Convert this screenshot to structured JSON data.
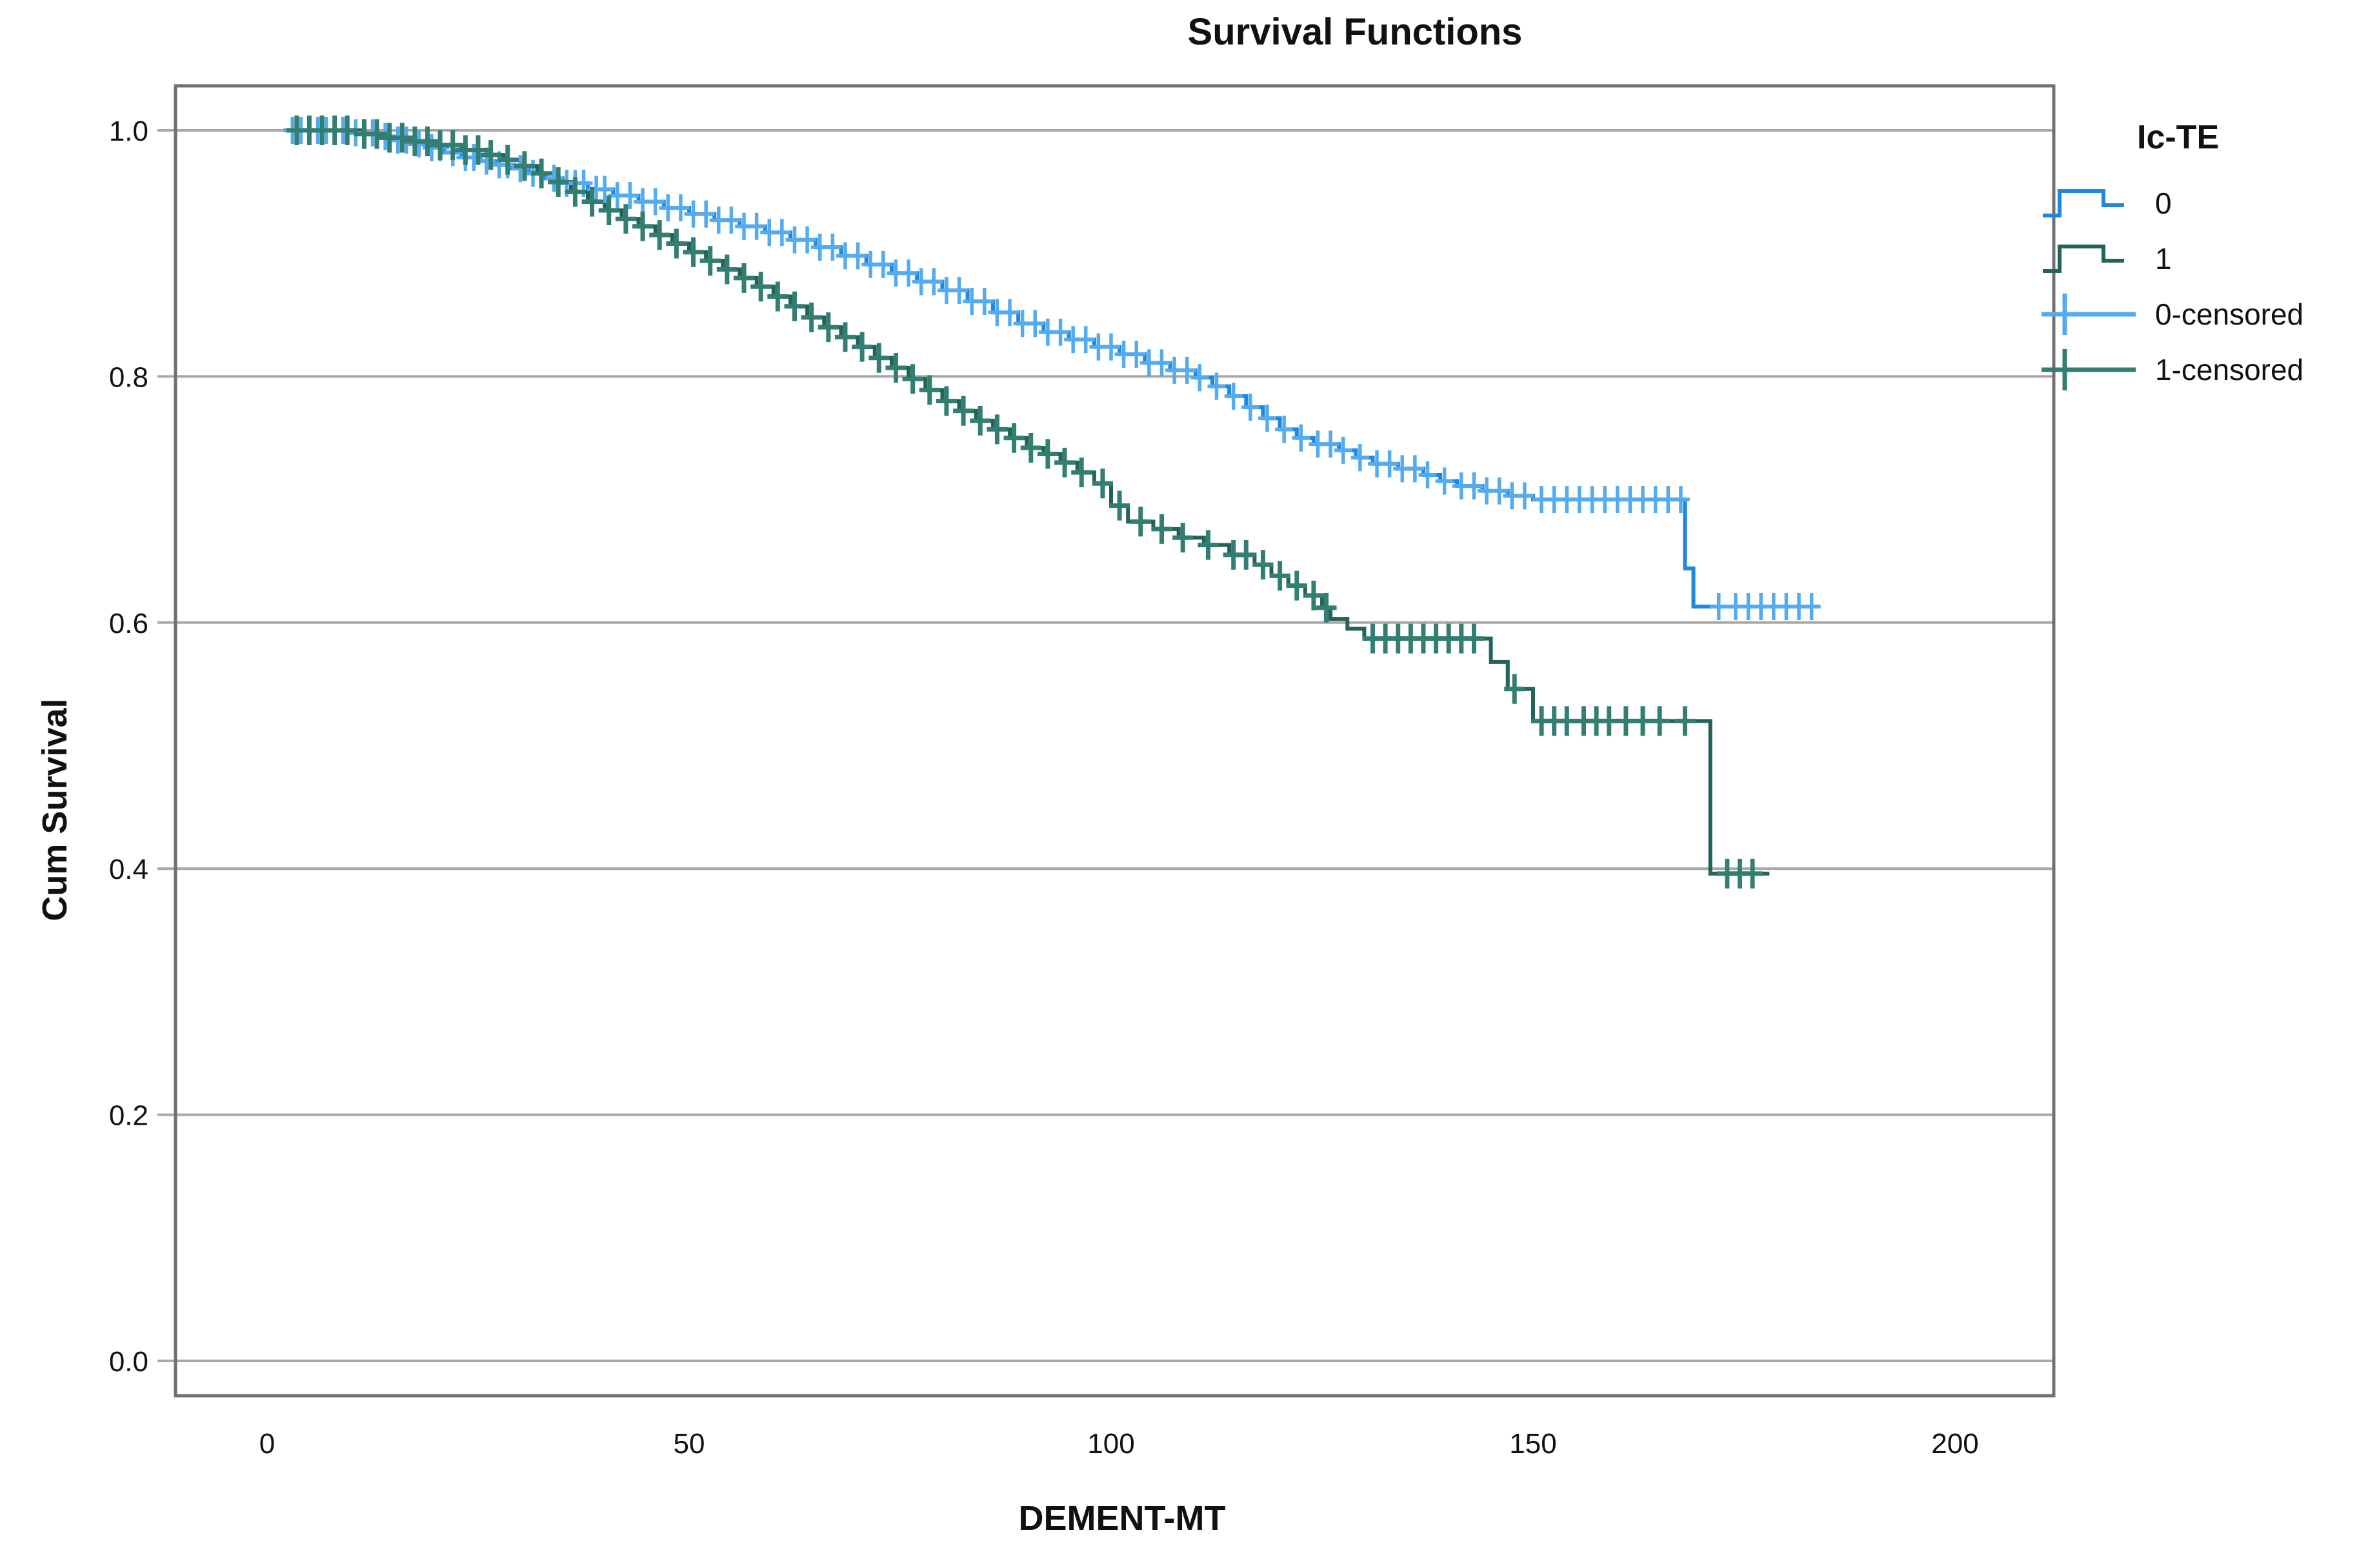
{
  "chart_data": {
    "type": "line",
    "subtype": "kaplan-meier-step",
    "title": "Survival Functions",
    "xlabel": "DEMENT-MT",
    "ylabel": "Cum Survival",
    "legend_title": "Ic-TE",
    "legend_position": "right",
    "grid": "horizontal",
    "xlim": [
      -11,
      212
    ],
    "ylim": [
      -0.03,
      1.04
    ],
    "xticks": [
      0,
      50,
      100,
      150,
      200
    ],
    "yticks": [
      0.0,
      0.2,
      0.4,
      0.6,
      0.8,
      1.0
    ],
    "series": [
      {
        "name": "0",
        "type": "step",
        "color": "#1E87DF",
        "steps": [
          [
            2,
            1.0
          ],
          [
            10,
            0.998
          ],
          [
            13,
            0.995
          ],
          [
            15,
            0.992
          ],
          [
            17,
            0.989
          ],
          [
            19,
            0.986
          ],
          [
            21,
            0.982
          ],
          [
            23,
            0.978
          ],
          [
            25,
            0.975
          ],
          [
            27,
            0.972
          ],
          [
            29,
            0.969
          ],
          [
            31,
            0.965
          ],
          [
            33,
            0.961
          ],
          [
            35,
            0.957
          ],
          [
            38,
            0.952
          ],
          [
            41,
            0.947
          ],
          [
            44,
            0.942
          ],
          [
            47,
            0.937
          ],
          [
            50,
            0.932
          ],
          [
            53,
            0.927
          ],
          [
            56,
            0.922
          ],
          [
            59,
            0.917
          ],
          [
            62,
            0.911
          ],
          [
            65,
            0.905
          ],
          [
            68,
            0.898
          ],
          [
            71,
            0.891
          ],
          [
            74,
            0.884
          ],
          [
            77,
            0.877
          ],
          [
            80,
            0.87
          ],
          [
            83,
            0.861
          ],
          [
            86,
            0.852
          ],
          [
            89,
            0.843
          ],
          [
            92,
            0.836
          ],
          [
            95,
            0.83
          ],
          [
            98,
            0.824
          ],
          [
            101,
            0.818
          ],
          [
            104,
            0.811
          ],
          [
            107,
            0.805
          ],
          [
            110,
            0.799
          ],
          [
            112,
            0.792
          ],
          [
            114,
            0.784
          ],
          [
            116,
            0.775
          ],
          [
            118,
            0.766
          ],
          [
            120,
            0.757
          ],
          [
            122,
            0.75
          ],
          [
            124,
            0.745
          ],
          [
            127,
            0.74
          ],
          [
            129,
            0.734
          ],
          [
            131,
            0.729
          ],
          [
            134,
            0.725
          ],
          [
            137,
            0.72
          ],
          [
            139,
            0.715
          ],
          [
            141,
            0.711
          ],
          [
            144,
            0.707
          ],
          [
            147,
            0.703
          ],
          [
            150,
            0.7
          ],
          [
            168,
            0.644
          ],
          [
            169,
            0.613
          ],
          [
            184,
            0.613
          ]
        ]
      },
      {
        "name": "1",
        "type": "step",
        "color": "#24635A",
        "steps": [
          [
            2,
            1.0
          ],
          [
            11,
            0.997
          ],
          [
            14,
            0.994
          ],
          [
            17,
            0.991
          ],
          [
            20,
            0.988
          ],
          [
            23,
            0.984
          ],
          [
            26,
            0.98
          ],
          [
            28,
            0.976
          ],
          [
            30,
            0.971
          ],
          [
            32,
            0.965
          ],
          [
            34,
            0.958
          ],
          [
            36,
            0.95
          ],
          [
            38,
            0.942
          ],
          [
            40,
            0.935
          ],
          [
            42,
            0.928
          ],
          [
            44,
            0.922
          ],
          [
            46,
            0.915
          ],
          [
            48,
            0.908
          ],
          [
            50,
            0.901
          ],
          [
            52,
            0.894
          ],
          [
            54,
            0.887
          ],
          [
            56,
            0.88
          ],
          [
            58,
            0.873
          ],
          [
            60,
            0.865
          ],
          [
            62,
            0.857
          ],
          [
            64,
            0.848
          ],
          [
            66,
            0.84
          ],
          [
            68,
            0.832
          ],
          [
            70,
            0.824
          ],
          [
            72,
            0.815
          ],
          [
            74,
            0.807
          ],
          [
            76,
            0.798
          ],
          [
            78,
            0.789
          ],
          [
            80,
            0.78
          ],
          [
            82,
            0.772
          ],
          [
            84,
            0.764
          ],
          [
            86,
            0.757
          ],
          [
            88,
            0.75
          ],
          [
            90,
            0.742
          ],
          [
            92,
            0.737
          ],
          [
            94,
            0.73
          ],
          [
            96,
            0.722
          ],
          [
            98,
            0.713
          ],
          [
            100,
            0.695
          ],
          [
            102,
            0.682
          ],
          [
            105,
            0.676
          ],
          [
            108,
            0.669
          ],
          [
            111,
            0.663
          ],
          [
            114,
            0.655
          ],
          [
            117,
            0.647
          ],
          [
            119,
            0.638
          ],
          [
            121,
            0.63
          ],
          [
            123,
            0.622
          ],
          [
            125,
            0.612
          ],
          [
            126,
            0.603
          ],
          [
            128,
            0.595
          ],
          [
            130,
            0.587
          ],
          [
            145,
            0.568
          ],
          [
            147,
            0.546
          ],
          [
            150,
            0.52
          ],
          [
            171,
            0.396
          ],
          [
            178,
            0.396
          ]
        ]
      },
      {
        "name": "0-censored",
        "type": "censor-marks",
        "color": "#54ABF0",
        "on_series": "0",
        "x": [
          3,
          4,
          5,
          6,
          7,
          8,
          9,
          10.5,
          11.5,
          12.5,
          14,
          15.5,
          16.5,
          18,
          19.5,
          20.5,
          22,
          23.5,
          24.5,
          26,
          27.5,
          28.5,
          30,
          31.5,
          32.5,
          34,
          35.5,
          36.5,
          37.5,
          39,
          40,
          41.5,
          43,
          44.5,
          46,
          47.5,
          49,
          50.5,
          52,
          53.5,
          55,
          56.5,
          58,
          59.5,
          61,
          62.5,
          64,
          65.5,
          67,
          68.5,
          70,
          71.5,
          73,
          74.5,
          76,
          77.5,
          79,
          80.5,
          82,
          83.5,
          85,
          86.5,
          88,
          89.5,
          91,
          92.5,
          94,
          95.5,
          97,
          98.5,
          100,
          101.5,
          103,
          104.5,
          106,
          107.5,
          109,
          110.5,
          112.5,
          114.5,
          116.5,
          118.5,
          120.5,
          122.5,
          124.5,
          126,
          127.5,
          129.5,
          131.5,
          133,
          134.5,
          136,
          137.5,
          139.5,
          141.5,
          143,
          144.5,
          146,
          147.5,
          149,
          151,
          152.5,
          154,
          155.5,
          157,
          158.5,
          160,
          161.5,
          163,
          164.5,
          166,
          167.5,
          172,
          174,
          175.5,
          177,
          178.5,
          180,
          181.5,
          183
        ]
      },
      {
        "name": "1-censored",
        "type": "censor-marks",
        "color": "#337E72",
        "on_series": "1",
        "x": [
          3.5,
          5,
          6.5,
          8,
          9.5,
          11.5,
          13,
          14.5,
          16,
          17.5,
          19,
          20.5,
          22,
          23.5,
          25,
          26.5,
          28.5,
          30.5,
          32.5,
          34.5,
          36.5,
          38.5,
          40.5,
          42.5,
          44.5,
          46.5,
          48.5,
          50.5,
          52.5,
          54.5,
          56.5,
          58.5,
          60.5,
          62.5,
          64.5,
          66.5,
          68.5,
          70.5,
          72.5,
          74.5,
          76.5,
          78.5,
          80.5,
          82.5,
          84.5,
          86.5,
          88.5,
          90.5,
          92.5,
          94.5,
          96.5,
          99,
          101,
          103.5,
          106,
          108.5,
          111.5,
          114.5,
          116,
          118,
          120,
          122,
          124,
          125.5,
          131,
          132.5,
          134,
          135.5,
          137,
          138.5,
          140,
          141.5,
          143,
          147.8,
          151,
          152.5,
          154,
          156,
          157.5,
          159,
          161,
          163,
          165,
          168,
          173,
          174.5,
          176
        ]
      }
    ]
  },
  "colors": {
    "background": "#FFFFFF",
    "grid": "#A8A8A8",
    "frame": "#707070",
    "text": "#111111"
  },
  "legend": {
    "title": "Ic-TE",
    "items": [
      {
        "label": "0",
        "symbol": "step-line"
      },
      {
        "label": "1",
        "symbol": "step-line"
      },
      {
        "label": "0-censored",
        "symbol": "plus-cross"
      },
      {
        "label": "1-censored",
        "symbol": "plus-cross"
      }
    ]
  }
}
